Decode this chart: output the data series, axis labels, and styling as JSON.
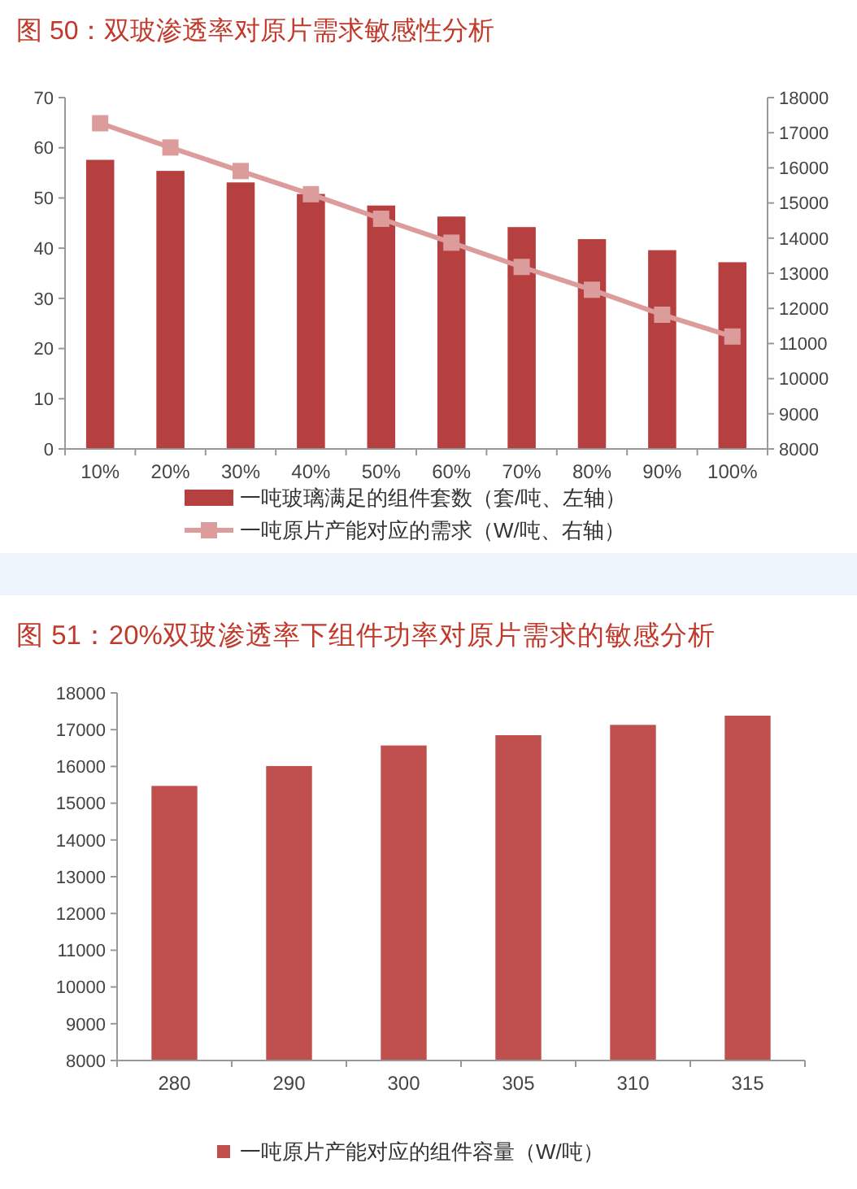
{
  "chart_data": [
    {
      "type": "bar",
      "title": "图 50：双玻渗透率对原片需求敏感性分析",
      "categories": [
        "10%",
        "20%",
        "30%",
        "40%",
        "50%",
        "60%",
        "70%",
        "80%",
        "90%",
        "100%"
      ],
      "series": [
        {
          "name": "一吨玻璃满足的组件套数（套/吨、左轴）",
          "type": "bar",
          "color": "#b5403f",
          "values": [
            57.6,
            55.4,
            53.1,
            50.8,
            48.5,
            46.3,
            44.2,
            41.8,
            39.6,
            37.2
          ]
        },
        {
          "name": "一吨原片产能对应的需求（W/吨、右轴）",
          "type": "line",
          "axis": "y2",
          "color": "#dc9c9b",
          "marker": "square",
          "values": [
            17270,
            16580,
            15910,
            15250,
            14550,
            13870,
            13180,
            12530,
            11820,
            11200
          ]
        }
      ],
      "ylim": [
        0,
        70
      ],
      "yticks": [
        0,
        10,
        20,
        30,
        40,
        50,
        60,
        70
      ],
      "y2lim": [
        8000,
        18000
      ],
      "y2ticks": [
        8000,
        9000,
        10000,
        11000,
        12000,
        13000,
        14000,
        15000,
        16000,
        17000,
        18000
      ],
      "legend": "bottom",
      "grid": false
    },
    {
      "type": "bar",
      "title": "图 51：20%双玻渗透率下组件功率对原片需求的敏感分析",
      "categories": [
        "280",
        "290",
        "300",
        "305",
        "310",
        "315"
      ],
      "series": [
        {
          "name": "一吨原片产能对应的组件容量（W/吨）",
          "color": "#c0504d",
          "values": [
            15470,
            16010,
            16570,
            16850,
            17130,
            17380
          ]
        }
      ],
      "ylim": [
        8000,
        18000
      ],
      "yticks": [
        8000,
        9000,
        10000,
        11000,
        12000,
        13000,
        14000,
        15000,
        16000,
        17000,
        18000
      ],
      "legend": "bottom",
      "grid": false
    }
  ]
}
